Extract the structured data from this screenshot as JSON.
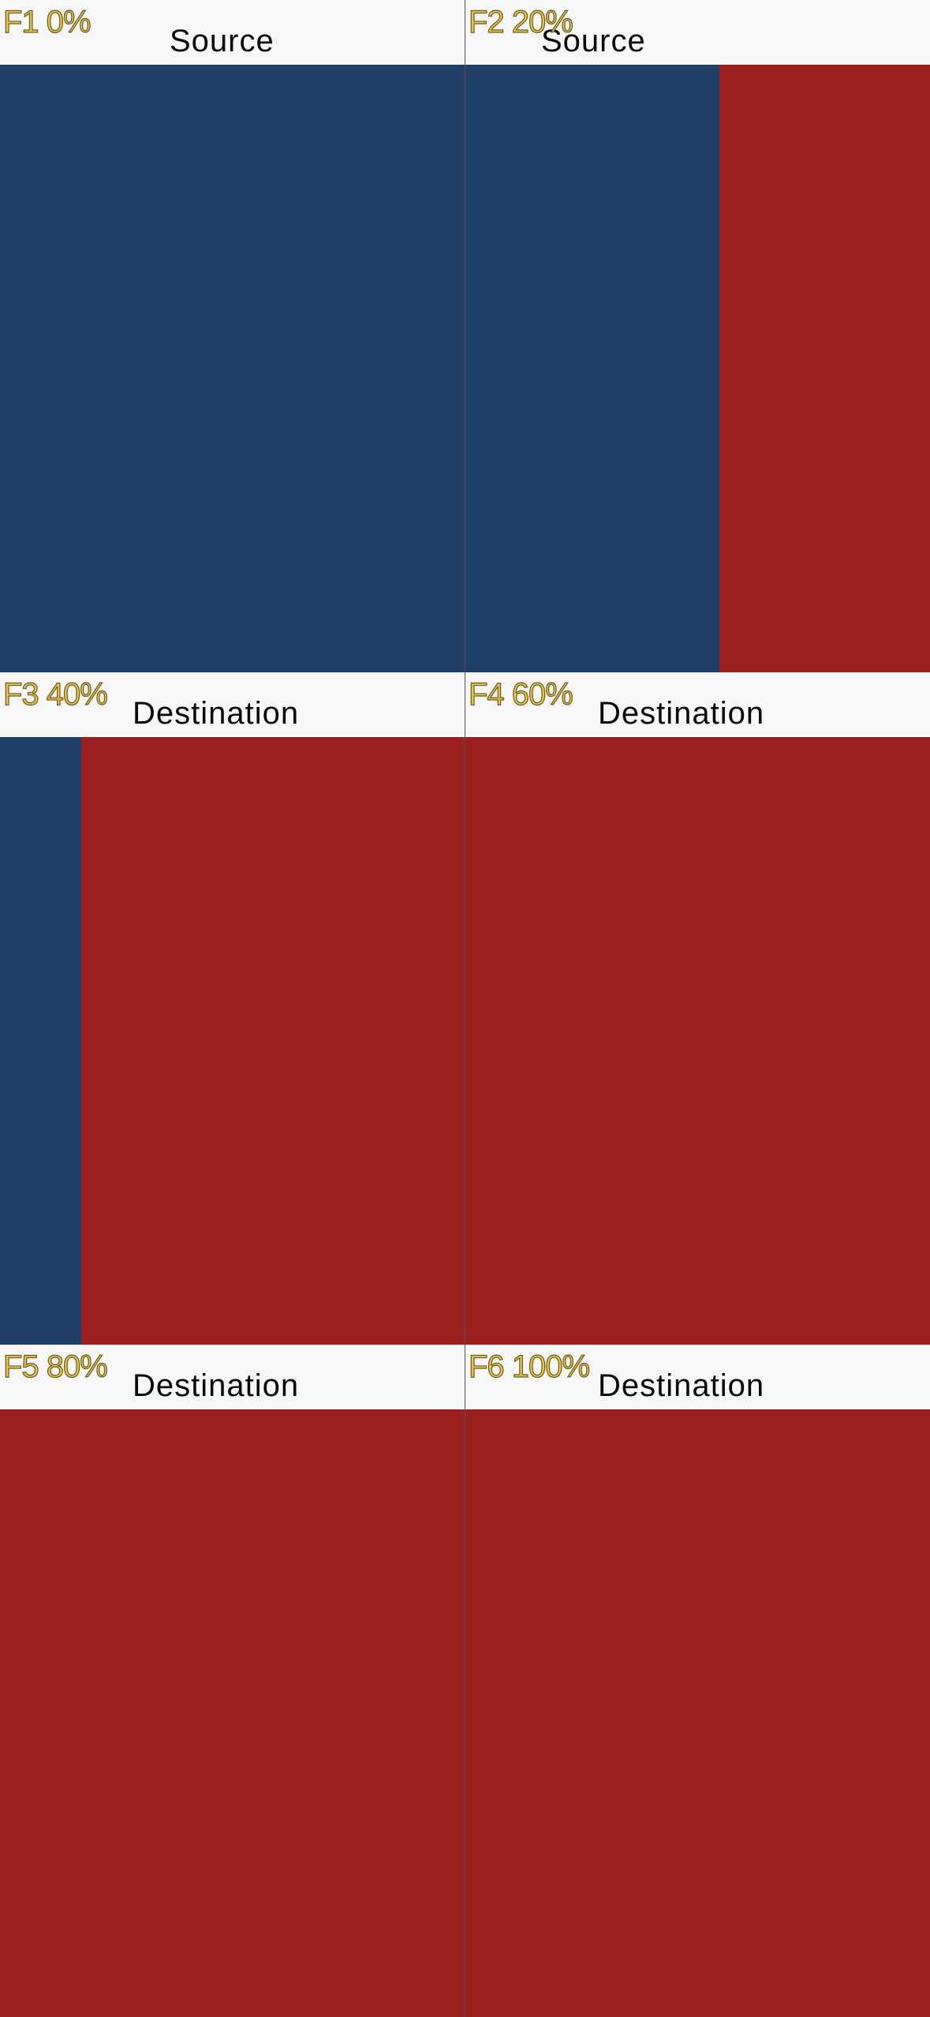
{
  "frames": [
    {
      "label": "F1 0%",
      "title": "Source",
      "progress": 0.0
    },
    {
      "label": "F2 20%",
      "title": "Source",
      "progress": 0.2
    },
    {
      "label": "F3 40%",
      "title": "Destination",
      "progress": 0.4
    },
    {
      "label": "F4 60%",
      "title": "Destination",
      "progress": 0.6
    },
    {
      "label": "F5 80%",
      "title": "Destination",
      "progress": 0.8
    },
    {
      "label": "F6 100%",
      "title": "Destination",
      "progress": 1.0
    }
  ],
  "colors": {
    "source_panel": "#1f3f66",
    "destination_panel": "#9c1f20",
    "header_bg": "#f7f7f7",
    "label_fill": "#e9c64a"
  }
}
